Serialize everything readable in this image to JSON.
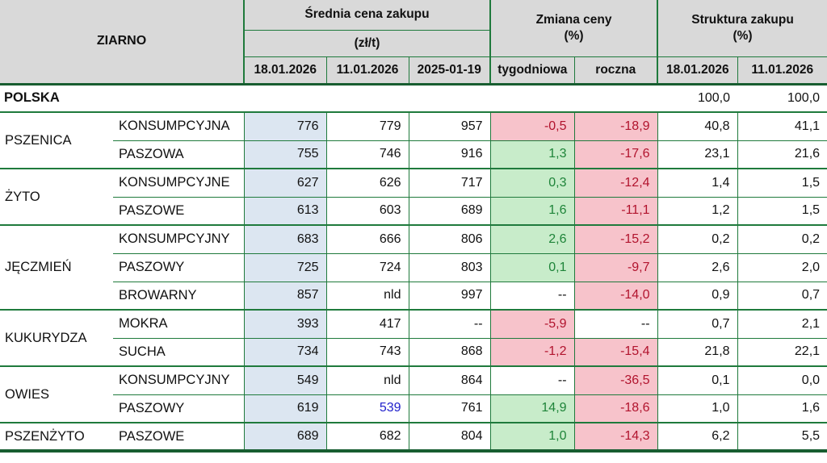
{
  "table": {
    "header": {
      "ziarno": "ZIARNO",
      "price_group": "Średnia cena zakupu",
      "price_unit": "(zł/t)",
      "price_dates": [
        "18.01.2026",
        "11.01.2026",
        "2025-01-19"
      ],
      "change_group": "Zmiana ceny",
      "change_unit": "(%)",
      "change_cols": [
        "tygodniowa",
        "roczna"
      ],
      "share_group": "Struktura zakupu",
      "share_unit": "(%)",
      "share_dates": [
        "18.01.2026",
        "11.01.2026"
      ]
    },
    "summary_row": {
      "label": "POLSKA",
      "share_18": "100,0",
      "share_11": "100,0"
    },
    "rows": [
      {
        "grain": "PSZENICA",
        "grain_span": 2,
        "variety": "KONSUMPCYJNA",
        "p18": "776",
        "p11": "779",
        "p25": "957",
        "weekly": "-0,5",
        "weekly_state": "neg",
        "yearly": "-18,9",
        "yearly_state": "neg",
        "s18": "40,8",
        "s11": "41,1"
      },
      {
        "variety": "PASZOWA",
        "p18": "755",
        "p11": "746",
        "p25": "916",
        "weekly": "1,3",
        "weekly_state": "pos",
        "yearly": "-17,6",
        "yearly_state": "neg",
        "s18": "23,1",
        "s11": "21,6"
      },
      {
        "grain": "ŻYTO",
        "grain_span": 2,
        "variety": "KONSUMPCYJNE",
        "p18": "627",
        "p11": "626",
        "p25": "717",
        "weekly": "0,3",
        "weekly_state": "pos",
        "yearly": "-12,4",
        "yearly_state": "neg",
        "s18": "1,4",
        "s11": "1,5"
      },
      {
        "variety": "PASZOWE",
        "p18": "613",
        "p11": "603",
        "p25": "689",
        "weekly": "1,6",
        "weekly_state": "pos",
        "yearly": "-11,1",
        "yearly_state": "neg",
        "s18": "1,2",
        "s11": "1,5"
      },
      {
        "grain": "JĘCZMIEŃ",
        "grain_span": 3,
        "variety": "KONSUMPCYJNY",
        "p18": "683",
        "p11": "666",
        "p25": "806",
        "weekly": "2,6",
        "weekly_state": "pos",
        "yearly": "-15,2",
        "yearly_state": "neg",
        "s18": "0,2",
        "s11": "0,2"
      },
      {
        "variety": "PASZOWY",
        "p18": "725",
        "p11": "724",
        "p25": "803",
        "weekly": "0,1",
        "weekly_state": "pos",
        "yearly": "-9,7",
        "yearly_state": "neg",
        "s18": "2,6",
        "s11": "2,0"
      },
      {
        "variety": "BROWARNY",
        "p18": "857",
        "p11": "nld",
        "p25": "997",
        "weekly": "--",
        "weekly_state": "none",
        "yearly": "-14,0",
        "yearly_state": "neg",
        "s18": "0,9",
        "s11": "0,7"
      },
      {
        "grain": "KUKURYDZA",
        "grain_span": 2,
        "variety": "MOKRA",
        "p18": "393",
        "p11": "417",
        "p25": "--",
        "weekly": "-5,9",
        "weekly_state": "neg",
        "yearly": "--",
        "yearly_state": "none",
        "s18": "0,7",
        "s11": "2,1"
      },
      {
        "variety": "SUCHA",
        "p18": "734",
        "p11": "743",
        "p25": "868",
        "weekly": "-1,2",
        "weekly_state": "neg",
        "yearly": "-15,4",
        "yearly_state": "neg",
        "s18": "21,8",
        "s11": "22,1"
      },
      {
        "grain": "OWIES",
        "grain_span": 2,
        "variety": "KONSUMPCYJNY",
        "p18": "549",
        "p11": "nld",
        "p25": "864",
        "weekly": "--",
        "weekly_state": "none",
        "yearly": "-36,5",
        "yearly_state": "neg",
        "s18": "0,1",
        "s11": "0,0"
      },
      {
        "variety": "PASZOWY",
        "p18": "619",
        "p11": "539",
        "p11_color": "blue",
        "p25": "761",
        "weekly": "14,9",
        "weekly_state": "pos",
        "yearly": "-18,6",
        "yearly_state": "neg",
        "s18": "1,0",
        "s11": "1,6"
      },
      {
        "grain": "PSZENŻYTO",
        "grain_span": 1,
        "variety": "PASZOWE",
        "p18": "689",
        "p11": "682",
        "p25": "804",
        "weekly": "1,0",
        "weekly_state": "pos",
        "yearly": "-14,3",
        "yearly_state": "neg",
        "s18": "6,2",
        "s11": "5,5"
      }
    ],
    "colors": {
      "grid": "#1f7a3c",
      "dark": "#175d30",
      "headbg": "#d9d9d9",
      "bluecol": "#dce6f1",
      "posbg": "#c8ecca",
      "postx": "#1e8439",
      "negbg": "#f7c3cb",
      "negtx": "#b1132d",
      "bluetx": "#2222cc"
    }
  }
}
